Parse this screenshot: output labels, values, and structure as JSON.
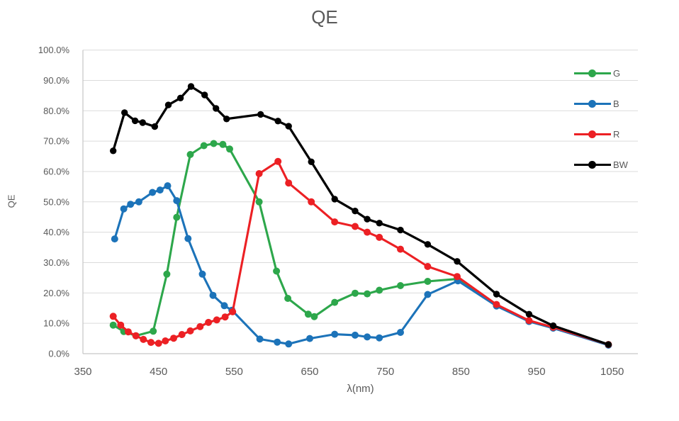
{
  "window": {
    "background": "#ffffff"
  },
  "chart_data": {
    "type": "line",
    "title": "QE",
    "xlabel": "λ(nm)",
    "ylabel": "QE",
    "xlim": [
      350,
      1084
    ],
    "ylim": [
      0,
      100
    ],
    "grid": "horizontal-only",
    "legend_position": "right-inside",
    "colors": {
      "title_text": "#595959",
      "axis_text": "#595959",
      "gridline": "#dbdbdb",
      "axis_line": "#c6c6c6",
      "plot_background": "#ffffff"
    },
    "x_ticks": [
      {
        "value": 350,
        "label": "350"
      },
      {
        "value": 450,
        "label": "450"
      },
      {
        "value": 550,
        "label": "550"
      },
      {
        "value": 650,
        "label": "650"
      },
      {
        "value": 750,
        "label": "750"
      },
      {
        "value": 850,
        "label": "850"
      },
      {
        "value": 950,
        "label": "950"
      },
      {
        "value": 1050,
        "label": "1050"
      }
    ],
    "y_ticks": [
      {
        "value": 0,
        "label": "0.0%"
      },
      {
        "value": 10,
        "label": "10.0%"
      },
      {
        "value": 20,
        "label": "20.0%"
      },
      {
        "value": 30,
        "label": "30.0%"
      },
      {
        "value": 40,
        "label": "40.0%"
      },
      {
        "value": 50,
        "label": "50.0%"
      },
      {
        "value": 60,
        "label": "60.0%"
      },
      {
        "value": 70,
        "label": "70.0%"
      },
      {
        "value": 80,
        "label": "80.0%"
      },
      {
        "value": 90,
        "label": "90.0%"
      },
      {
        "value": 100,
        "label": "100.0%"
      }
    ],
    "series": [
      {
        "name": "G",
        "color": "#2da74b",
        "points": [
          [
            390,
            9.4
          ],
          [
            404,
            7.3
          ],
          [
            420,
            5.9
          ],
          [
            443,
            7.4
          ],
          [
            461,
            26.2
          ],
          [
            474,
            44.9
          ],
          [
            492,
            65.6
          ],
          [
            510,
            68.5
          ],
          [
            523,
            69.2
          ],
          [
            535,
            68.9
          ],
          [
            544,
            67.4
          ],
          [
            583,
            50.0
          ],
          [
            606,
            27.2
          ],
          [
            621,
            18.2
          ],
          [
            648,
            13.0
          ],
          [
            656,
            12.2
          ],
          [
            683,
            16.9
          ],
          [
            710,
            19.9
          ],
          [
            726,
            19.7
          ],
          [
            742,
            20.9
          ],
          [
            770,
            22.4
          ],
          [
            806,
            23.8
          ],
          [
            845,
            24.6
          ],
          [
            897,
            15.9
          ],
          [
            940,
            10.7
          ],
          [
            972,
            8.5
          ],
          [
            1045,
            2.9
          ]
        ]
      },
      {
        "name": "B",
        "color": "#1c73b9",
        "points": [
          [
            392,
            37.8
          ],
          [
            404,
            47.7
          ],
          [
            413,
            49.2
          ],
          [
            424,
            50.0
          ],
          [
            442,
            53.1
          ],
          [
            452,
            53.9
          ],
          [
            462,
            55.3
          ],
          [
            474,
            50.4
          ],
          [
            489,
            37.9
          ],
          [
            508,
            26.2
          ],
          [
            522,
            19.2
          ],
          [
            537,
            15.8
          ],
          [
            547,
            14.3
          ],
          [
            584,
            4.8
          ],
          [
            607,
            3.8
          ],
          [
            622,
            3.2
          ],
          [
            650,
            5.0
          ],
          [
            683,
            6.4
          ],
          [
            710,
            6.1
          ],
          [
            726,
            5.5
          ],
          [
            742,
            5.2
          ],
          [
            770,
            7.0
          ],
          [
            806,
            19.5
          ],
          [
            846,
            24.0
          ],
          [
            897,
            15.7
          ],
          [
            940,
            10.6
          ],
          [
            972,
            8.4
          ],
          [
            1045,
            2.8
          ]
        ]
      },
      {
        "name": "R",
        "color": "#ec2024",
        "points": [
          [
            390,
            12.3
          ],
          [
            400,
            9.4
          ],
          [
            410,
            7.2
          ],
          [
            420,
            5.9
          ],
          [
            430,
            4.7
          ],
          [
            440,
            3.7
          ],
          [
            450,
            3.4
          ],
          [
            459,
            4.2
          ],
          [
            470,
            5.1
          ],
          [
            481,
            6.3
          ],
          [
            492,
            7.5
          ],
          [
            505,
            8.9
          ],
          [
            516,
            10.3
          ],
          [
            527,
            11.1
          ],
          [
            538,
            12.1
          ],
          [
            548,
            13.8
          ],
          [
            583,
            59.3
          ],
          [
            608,
            63.3
          ],
          [
            622,
            56.2
          ],
          [
            652,
            50.0
          ],
          [
            683,
            43.4
          ],
          [
            710,
            41.9
          ],
          [
            726,
            40.0
          ],
          [
            742,
            38.3
          ],
          [
            770,
            34.4
          ],
          [
            806,
            28.7
          ],
          [
            845,
            25.4
          ],
          [
            897,
            16.2
          ],
          [
            940,
            10.9
          ],
          [
            972,
            8.7
          ],
          [
            1045,
            3.0
          ]
        ]
      },
      {
        "name": "BW",
        "color": "#000000",
        "points": [
          [
            390,
            66.8
          ],
          [
            405,
            79.4
          ],
          [
            419,
            76.7
          ],
          [
            429,
            76.1
          ],
          [
            445,
            74.8
          ],
          [
            463,
            81.9
          ],
          [
            479,
            84.2
          ],
          [
            493,
            88.0
          ],
          [
            511,
            85.2
          ],
          [
            526,
            80.8
          ],
          [
            540,
            77.3
          ],
          [
            585,
            78.8
          ],
          [
            608,
            76.6
          ],
          [
            622,
            74.9
          ],
          [
            652,
            63.2
          ],
          [
            683,
            50.9
          ],
          [
            710,
            47.0
          ],
          [
            726,
            44.3
          ],
          [
            742,
            43.0
          ],
          [
            770,
            40.7
          ],
          [
            806,
            36.0
          ],
          [
            845,
            30.4
          ],
          [
            897,
            19.6
          ],
          [
            940,
            13.0
          ],
          [
            972,
            9.2
          ],
          [
            1045,
            3.0
          ]
        ]
      }
    ]
  }
}
